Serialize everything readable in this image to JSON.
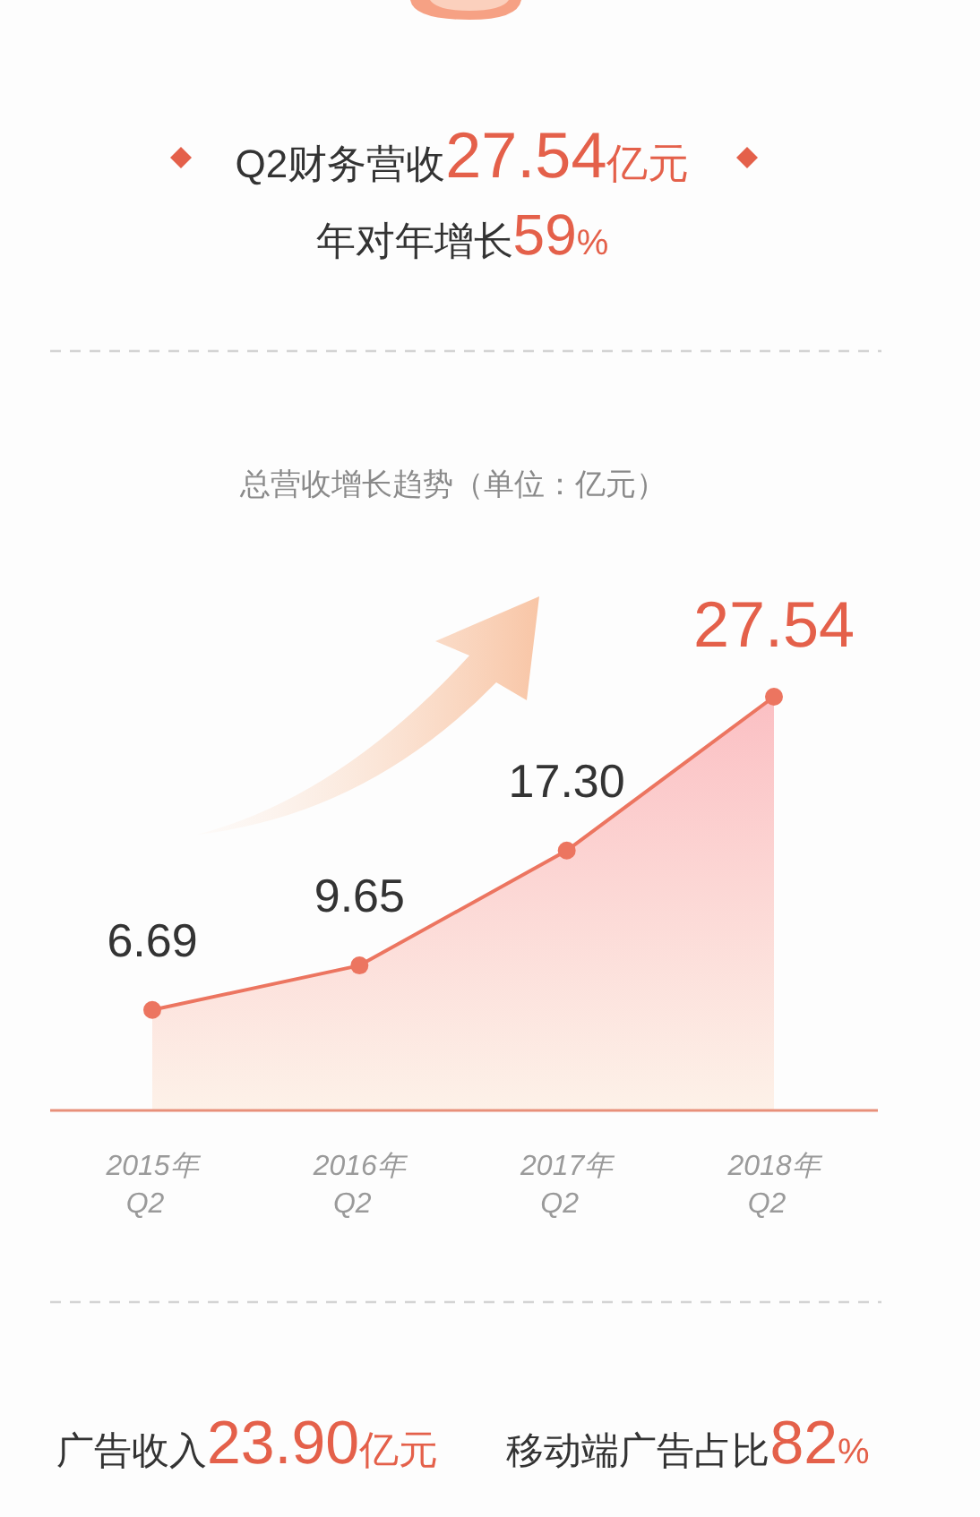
{
  "chart_data": {
    "type": "area",
    "title": "总营收增长趋势（单位：亿元）",
    "categories": [
      "2015年\nQ2",
      "2016年\nQ2",
      "2017年\nQ2",
      "2018年\nQ2"
    ],
    "values": [
      6.69,
      9.65,
      17.3,
      27.54
    ],
    "value_labels": [
      "6.69",
      "9.65",
      "17.30",
      "27.54"
    ],
    "color": "#ec7560",
    "marker": "circle",
    "annotations": [
      "Q2财务营收27.54亿元",
      "年对年增长59%",
      "广告收入23.90亿元",
      "移动端广告占比82%"
    ]
  }
}
